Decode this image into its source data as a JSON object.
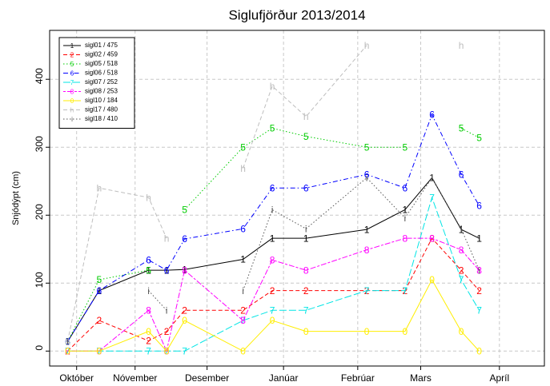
{
  "chart_data": {
    "type": "line",
    "title": "Siglufjörður 2013/2014",
    "y_label": "Snjódýpt (cm)",
    "x": [
      8,
      22,
      44,
      52,
      60,
      86,
      99,
      114,
      141,
      158,
      170,
      183,
      191
    ],
    "xlim": [
      0,
      220
    ],
    "xticks": [
      {
        "value": 12,
        "label": "Október"
      },
      {
        "value": 38,
        "label": "Nóvember"
      },
      {
        "value": 70,
        "label": "Desember"
      },
      {
        "value": 104,
        "label": "Janúar"
      },
      {
        "value": 137,
        "label": "Febrúar"
      },
      {
        "value": 165,
        "label": "Mars"
      },
      {
        "value": 200,
        "label": "Apríl"
      }
    ],
    "ylim": [
      -22,
      472
    ],
    "yticks": [
      0,
      100,
      200,
      300,
      400
    ],
    "grid": true,
    "legend": "top-left",
    "series": [
      {
        "name": "sigl01 / 475",
        "color": "#000000",
        "linestyle": "solid",
        "marker": "1",
        "values": [
          14,
          89,
          119,
          119,
          120,
          135,
          166,
          166,
          179,
          208,
          255,
          179,
          166
        ]
      },
      {
        "name": "sigl02 / 459",
        "color": "#ff0000",
        "linestyle": "dashed",
        "marker": "2",
        "values": [
          0,
          45,
          15,
          29,
          60,
          60,
          89,
          89,
          89,
          89,
          166,
          119,
          89
        ]
      },
      {
        "name": "sigl05 / 518",
        "color": "#00cc00",
        "linestyle": "dotted",
        "marker": "5",
        "values": [
          14,
          105,
          119,
          null,
          208,
          300,
          328,
          316,
          300,
          300,
          null,
          328,
          314
        ]
      },
      {
        "name": "sigl06 / 518",
        "color": "#0000ff",
        "linestyle": "dashdot",
        "marker": "6",
        "values": [
          14,
          89,
          134,
          119,
          165,
          180,
          240,
          240,
          260,
          240,
          348,
          260,
          214
        ]
      },
      {
        "name": "sigl07 / 252",
        "color": "#00e5e5",
        "linestyle": "longdash",
        "marker": "7",
        "values": [
          0,
          0,
          0,
          0,
          0,
          45,
          60,
          60,
          89,
          89,
          226,
          105,
          60
        ]
      },
      {
        "name": "sigl08 / 253",
        "color": "#ff00ff",
        "linestyle": "twodash",
        "marker": "8",
        "values": [
          0,
          0,
          60,
          0,
          119,
          45,
          134,
          119,
          149,
          166,
          166,
          149,
          119
        ]
      },
      {
        "name": "sigl10 / 184",
        "color": "#ffee00",
        "linestyle": "solid",
        "marker": "0",
        "values": [
          0,
          0,
          29,
          0,
          45,
          0,
          45,
          29,
          29,
          29,
          105,
          29,
          0
        ]
      },
      {
        "name": "sigl17 / 480",
        "color": "#bebebe",
        "linestyle": "dashed",
        "marker": "h",
        "values": [
          14,
          240,
          226,
          166,
          null,
          269,
          390,
          345,
          450,
          null,
          null,
          450,
          null
        ]
      },
      {
        "name": "sigl18 / 410",
        "color": "#555555",
        "linestyle": "dotted",
        "marker": "i",
        "values": [
          14,
          null,
          89,
          60,
          null,
          89,
          208,
          180,
          255,
          196,
          255,
          180,
          119
        ]
      }
    ]
  }
}
